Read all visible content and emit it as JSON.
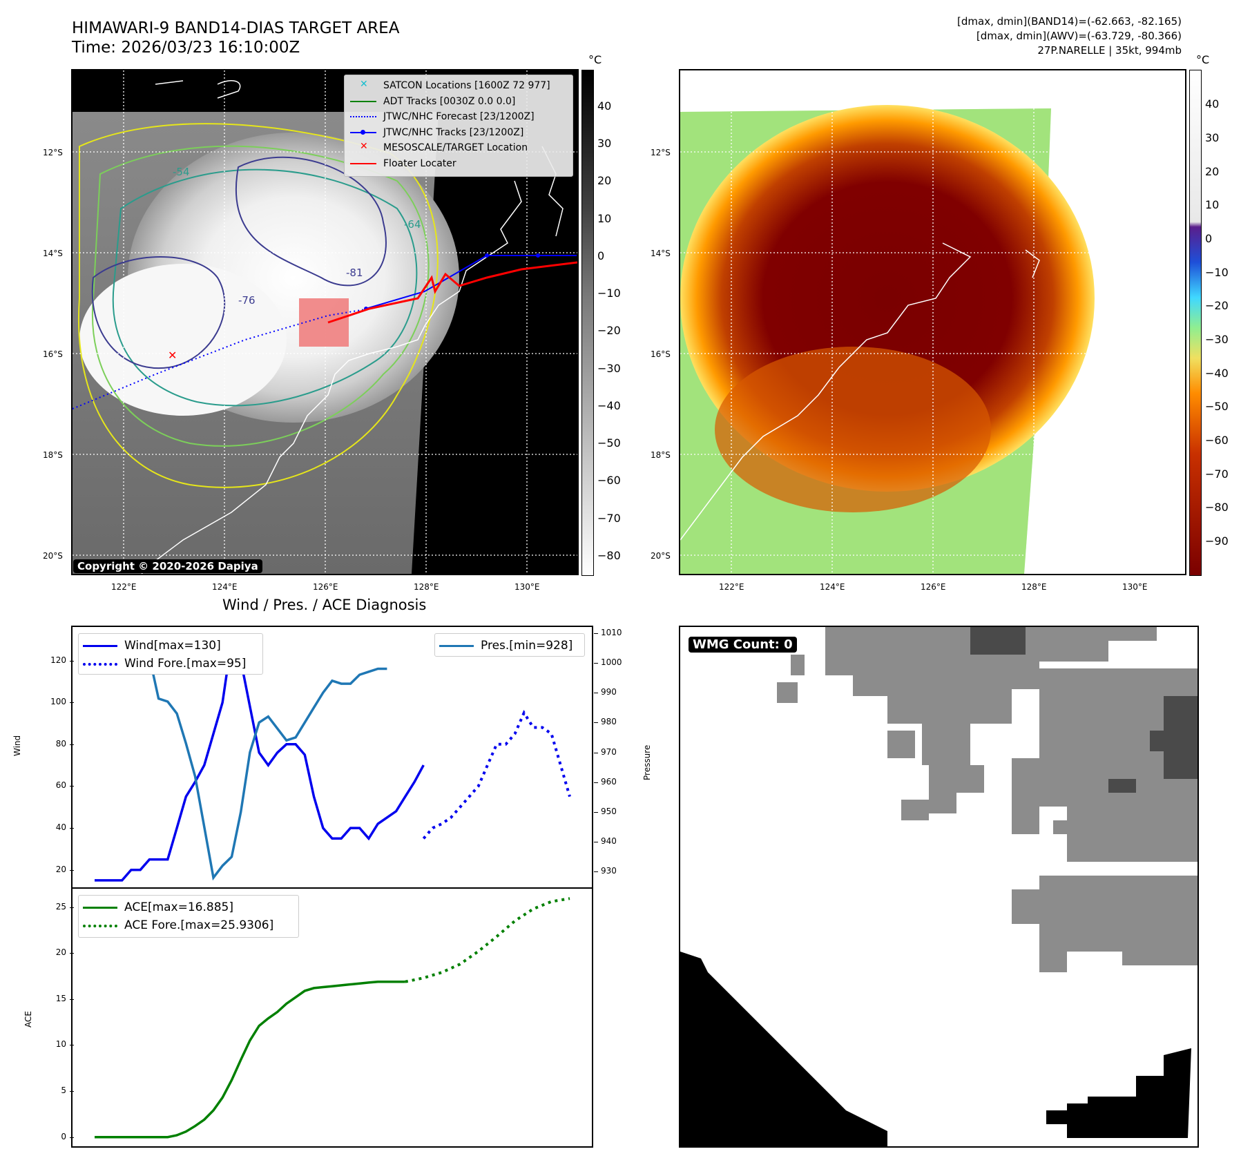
{
  "header": {
    "title_line1": "HIMAWARI-9 BAND14-DIAS TARGET AREA",
    "title_line2": "Time: 2026/03/23 16:10:00Z",
    "info_line1": "[dmax, dmin](BAND14)=(-62.663, -82.165)",
    "info_line2": "[dmax, dmin](AWV)=(-63.729, -80.366)",
    "info_line3": "27P.NARELLE | 35kt, 994mb"
  },
  "map_axes": {
    "lat_ticks": [
      "12°S",
      "14°S",
      "16°S",
      "18°S",
      "20°S"
    ],
    "lon_ticks": [
      "122°E",
      "124°E",
      "126°E",
      "128°E",
      "130°E"
    ]
  },
  "ir_colorbar": {
    "unit": "°C",
    "ticks": [
      "40",
      "30",
      "20",
      "10",
      "0",
      "−10",
      "−20",
      "−30",
      "−40",
      "−50",
      "−60",
      "−70",
      "−80"
    ]
  },
  "awv_colorbar": {
    "unit": "°C",
    "ticks": [
      "40",
      "30",
      "20",
      "10",
      "0",
      "−10",
      "−20",
      "−30",
      "−40",
      "−50",
      "−60",
      "−70",
      "−80",
      "−90"
    ]
  },
  "ir_legend": [
    {
      "label": "SATCON Locations [1600Z 72 977]",
      "icon": "cyan-x-marker",
      "color": "#17becf"
    },
    {
      "label": "ADT Tracks [0030Z 0.0 0.0]",
      "icon": "green-line",
      "color": "#008000"
    },
    {
      "label": "JTWC/NHC Forecast [23/1200Z]",
      "icon": "blue-dotted-line",
      "color": "#0000ff"
    },
    {
      "label": "JTWC/NHC Tracks [23/1200Z]",
      "icon": "blue-dot-line",
      "color": "#0000ff"
    },
    {
      "label": "MESOSCALE/TARGET Location",
      "icon": "red-x-marker",
      "color": "#ff0000"
    },
    {
      "label": "Floater Locater",
      "icon": "red-line",
      "color": "#ff0000"
    }
  ],
  "contour_labels": [
    "-54",
    "-64",
    "-76",
    "-81"
  ],
  "copyright": "Copyright © 2020-2026 Dapiya",
  "wmg": {
    "label": "WMG Count: 0"
  },
  "chart_data": [
    {
      "type": "line",
      "title": "Wind / Pres. / ACE Diagnosis",
      "ylabel": "Wind",
      "ylabel_right": "Pressure",
      "ylim": [
        12,
        136
      ],
      "ylim_right": [
        925,
        1012
      ],
      "x_range": [
        0,
        52
      ],
      "yticks": [
        20,
        40,
        60,
        80,
        100,
        120
      ],
      "yticks_right": [
        930,
        940,
        950,
        960,
        970,
        980,
        990,
        1000,
        1010
      ],
      "legend": {
        "wind": "Wind[max=130]",
        "wind_fore": "Wind Fore.[max=95]",
        "pres": "Pres.[min=928]"
      },
      "series": [
        {
          "name": "Wind",
          "color": "#0000ee",
          "style": "solid",
          "x": [
            0,
            1,
            2,
            3,
            4,
            5,
            6,
            7,
            8,
            9,
            10,
            11,
            12,
            13,
            14,
            15,
            16,
            17,
            18,
            19,
            20,
            21,
            22,
            23,
            24,
            25,
            26,
            27,
            28,
            29,
            30,
            31,
            32,
            33,
            34,
            35,
            36
          ],
          "values": [
            15,
            15,
            15,
            15,
            20,
            20,
            25,
            25,
            25,
            40,
            55,
            62,
            70,
            85,
            100,
            130,
            120,
            98,
            76,
            70,
            76,
            80,
            80,
            75,
            55,
            40,
            35,
            35,
            40,
            40,
            35,
            42,
            45,
            48,
            55,
            62,
            70
          ]
        },
        {
          "name": "Wind Fore.",
          "color": "#0000ee",
          "style": "dotted",
          "x": [
            36,
            37,
            38,
            39,
            40,
            41,
            42,
            43,
            44,
            45,
            46,
            47,
            48,
            49,
            50,
            51,
            52
          ],
          "values": [
            35,
            40,
            42,
            45,
            50,
            55,
            60,
            70,
            80,
            80,
            85,
            95,
            88,
            88,
            85,
            70,
            55
          ]
        },
        {
          "name": "Pres.",
          "color": "#1f77b4",
          "style": "solid",
          "axis": "right",
          "x": [
            0,
            1,
            2,
            3,
            4,
            5,
            6,
            7,
            8,
            9,
            10,
            11,
            12,
            13,
            14,
            15,
            16,
            17,
            18,
            19,
            20,
            21,
            22,
            23,
            24,
            25,
            26,
            27,
            28,
            29,
            30,
            31,
            32
          ],
          "values": [
            1009,
            1009,
            1006,
            1006,
            1005,
            1005,
            1002,
            988,
            987,
            983,
            973,
            962,
            945,
            928,
            932,
            935,
            950,
            970,
            980,
            982,
            978,
            974,
            975,
            980,
            985,
            990,
            994,
            993,
            993,
            996,
            997,
            998,
            998
          ]
        }
      ]
    },
    {
      "type": "line",
      "ylabel": "ACE",
      "ylim": [
        -1,
        27
      ],
      "x_range": [
        0,
        52
      ],
      "yticks": [
        0,
        5,
        10,
        15,
        20,
        25
      ],
      "legend": {
        "ace": "ACE[max=16.885]",
        "ace_fore": "ACE Fore.[max=25.9306]"
      },
      "series": [
        {
          "name": "ACE",
          "color": "#008000",
          "style": "solid",
          "x": [
            0,
            2,
            4,
            6,
            8,
            9,
            10,
            11,
            12,
            13,
            14,
            15,
            16,
            17,
            18,
            19,
            20,
            21,
            22,
            23,
            24,
            25,
            26,
            27,
            28,
            29,
            30,
            31,
            32,
            33,
            34
          ],
          "values": [
            0,
            0,
            0,
            0,
            0,
            0.2,
            0.6,
            1.2,
            1.9,
            2.9,
            4.3,
            6.2,
            8.4,
            10.5,
            12.1,
            12.9,
            13.6,
            14.5,
            15.2,
            15.9,
            16.2,
            16.3,
            16.4,
            16.5,
            16.6,
            16.7,
            16.8,
            16.885,
            16.885,
            16.885,
            16.885
          ]
        },
        {
          "name": "ACE Fore.",
          "color": "#008000",
          "style": "dotted",
          "x": [
            34,
            36,
            38,
            40,
            42,
            44,
            46,
            48,
            50,
            52
          ],
          "values": [
            16.885,
            17.3,
            17.9,
            18.8,
            20.2,
            21.8,
            23.5,
            24.8,
            25.6,
            25.9306
          ]
        }
      ]
    }
  ]
}
